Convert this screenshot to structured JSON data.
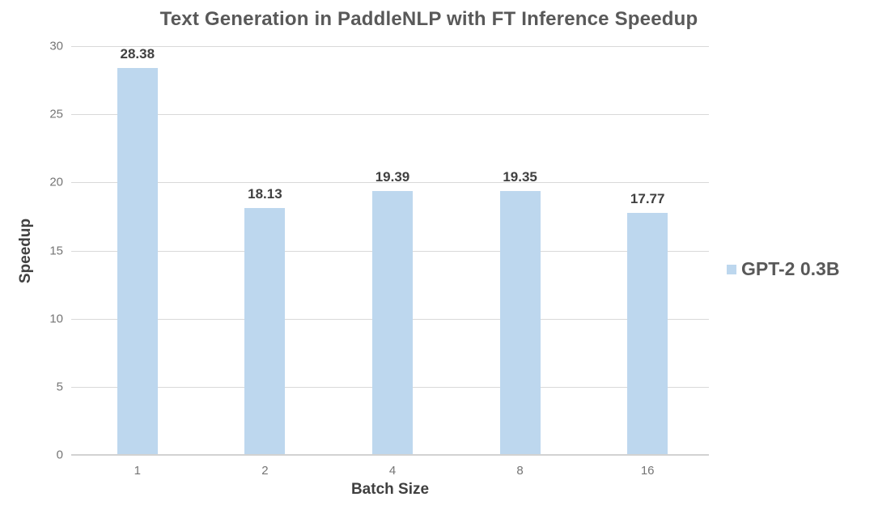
{
  "chart_data": {
    "type": "bar",
    "title": "Text Generation in PaddleNLP with FT Inference Speedup",
    "xlabel": "Batch Size",
    "ylabel": "Speedup",
    "categories": [
      "1",
      "2",
      "4",
      "8",
      "16"
    ],
    "series": [
      {
        "name": "GPT-2 0.3B",
        "values": [
          28.38,
          18.13,
          19.39,
          19.35,
          17.77
        ]
      }
    ],
    "data_labels": [
      "28.38",
      "18.13",
      "19.39",
      "19.35",
      "17.77"
    ],
    "ylim": [
      0,
      30
    ],
    "yticks": [
      0,
      5,
      10,
      15,
      20,
      25,
      30
    ],
    "grid": "horizontal",
    "legend_position": "right",
    "colors": {
      "bar_fill": "#BDD7EE",
      "gridline": "#D9D9D9",
      "axis_line": "#D2D2D2",
      "title": "#595959",
      "tick_labels": "#757575",
      "axis_titles": "#404040",
      "data_labels": "#404040",
      "legend_text": "#595959",
      "background": "#FFFFFF"
    }
  }
}
